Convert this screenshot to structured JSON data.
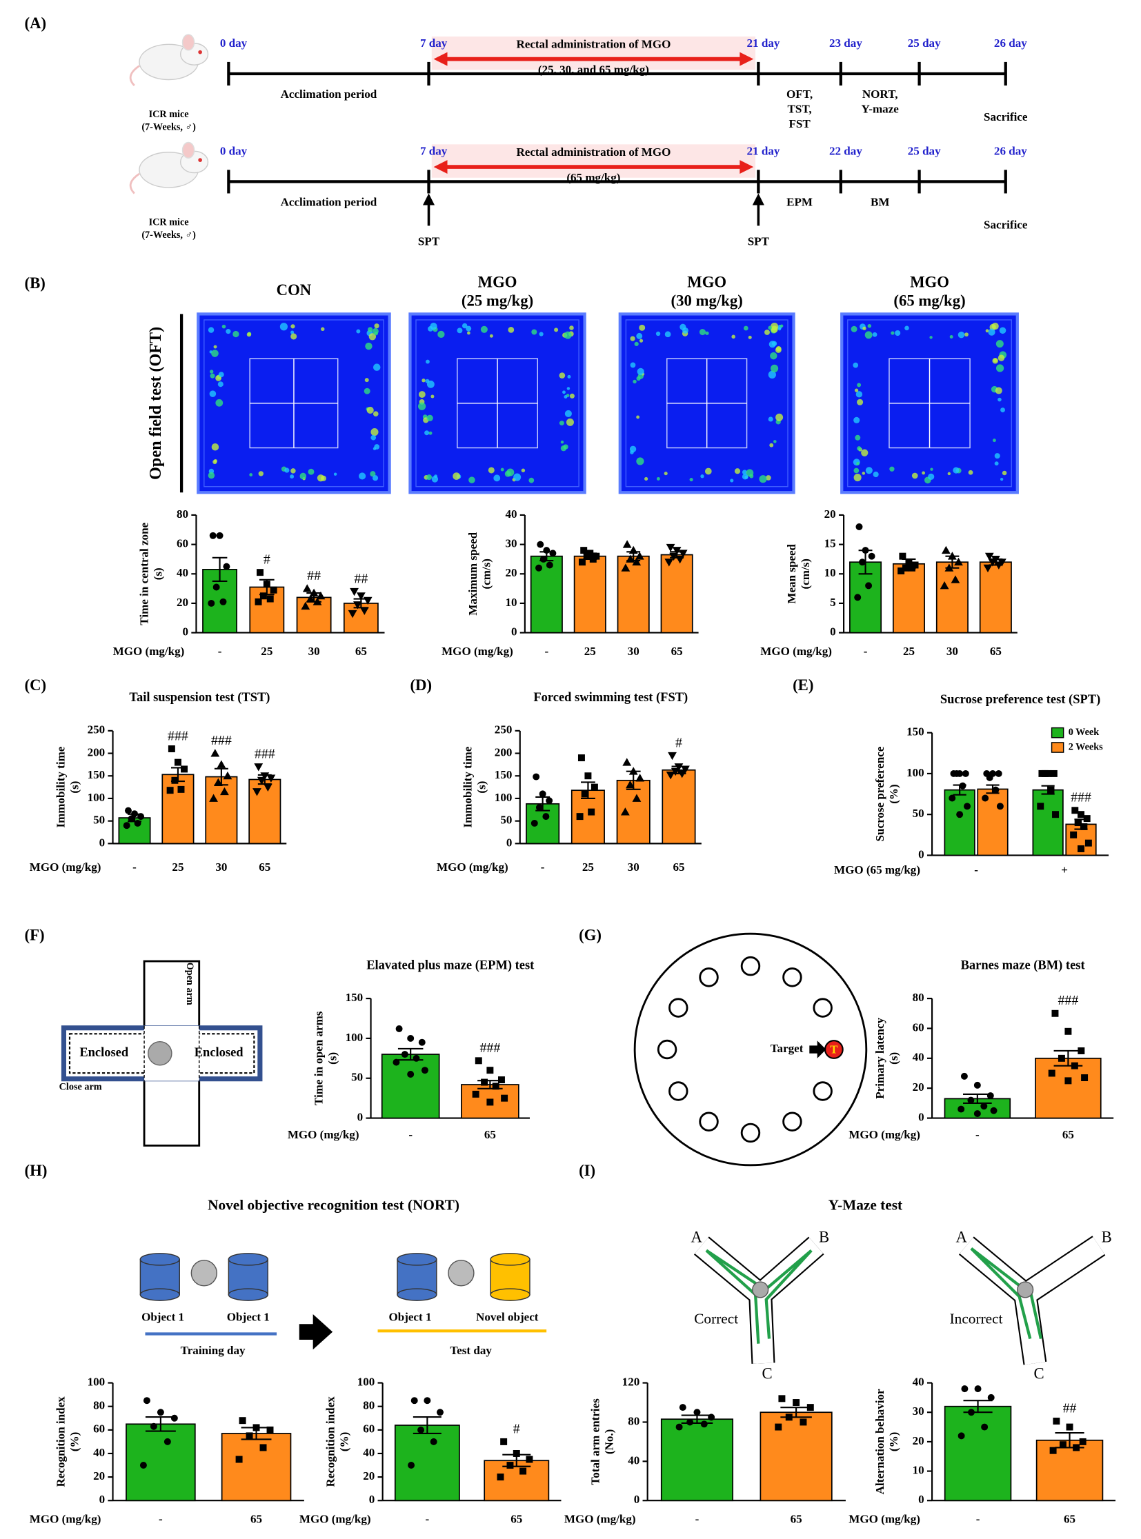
{
  "panel_labels": [
    "(A)",
    "(B)",
    "(C)",
    "(D)",
    "(E)",
    "(F)",
    "(G)",
    "(H)",
    "(I)"
  ],
  "timelines": [
    {
      "mice": [
        "ICR mice",
        "(7-Weeks, ♂)"
      ],
      "days": [
        "0 day",
        "7 day",
        "21 day",
        "23 day",
        "25 day",
        "26 day"
      ],
      "administration": "Rectal administration of MGO",
      "dose": "(25, 30, and 65 mg/kg)",
      "period": "Acclimation period",
      "tests_a": [
        "OFT,",
        "TST,",
        "FST"
      ],
      "tests_b": [
        "NORT,",
        "Y-maze"
      ],
      "end": "Sacrifice"
    },
    {
      "mice": [
        "ICR mice",
        "(7-Weeks, ♂)"
      ],
      "days": [
        "0 day",
        "7 day",
        "21 day",
        "22 day",
        "25 day",
        "26 day"
      ],
      "administration": "Rectal administration of MGO",
      "dose": "(65 mg/kg)",
      "period": "Acclimation period",
      "tests_a": [
        "EPM"
      ],
      "tests_b": [
        "BM"
      ],
      "end": "Sacrifice",
      "spt": [
        "SPT",
        "SPT"
      ]
    }
  ],
  "oft": {
    "label": "Open field test (OFT)",
    "titles": [
      [
        "CON"
      ],
      [
        "MGO",
        "(25 mg/kg)"
      ],
      [
        "MGO",
        "(30 mg/kg)"
      ],
      [
        "MGO",
        "(65 mg/kg)"
      ]
    ]
  },
  "epm": {
    "open": "Open arm",
    "enclosed": [
      "Enclosed",
      "Enclosed"
    ],
    "close": "Close arm"
  },
  "bm": {
    "target": "Target",
    "hole": "T"
  },
  "nort": {
    "title": "Novel objective recognition test (NORT)",
    "training": {
      "objects": [
        "Object 1",
        "Object 1"
      ],
      "day": "Training day"
    },
    "test": {
      "objects": [
        "Object 1",
        "Novel object"
      ],
      "day": "Test day"
    }
  },
  "ymaze": {
    "title": "Y-Maze test",
    "mazes": [
      {
        "arms": [
          "A",
          "B",
          "C"
        ],
        "result": "Correct"
      },
      {
        "arms": [
          "A",
          "B",
          "C"
        ],
        "result": "Incorrect"
      }
    ]
  },
  "chart_data": [
    {
      "type": "bar",
      "ylabel": [
        "Time in central zone",
        "(s)"
      ],
      "xlabel": "MGO (mg/kg)",
      "categories": [
        "-",
        "25",
        "30",
        "65"
      ],
      "ylim": [
        0,
        80
      ],
      "yticks": [
        0,
        20,
        40,
        60,
        80
      ],
      "series": [
        {
          "colors": [
            "#1db31d",
            "#ff8a1c",
            "#ff8a1c",
            "#ff8a1c"
          ],
          "markers": [
            "circle",
            "square",
            "triangle",
            "triangle-down"
          ],
          "values": [
            43,
            31,
            24,
            20
          ],
          "errors": [
            8,
            5,
            3,
            3
          ],
          "annotations": [
            null,
            "#",
            "##",
            "##"
          ],
          "points": [
            [
              66,
              66,
              45,
              31,
              21,
              20
            ],
            [
              41,
              33,
              29,
              25,
              23,
              21
            ],
            [
              30,
              27,
              25,
              23,
              21,
              18
            ],
            [
              28,
              25,
              22,
              19,
              15,
              13
            ]
          ]
        }
      ]
    },
    {
      "type": "bar",
      "ylabel": [
        "Maximum speed",
        "(cm/s)"
      ],
      "xlabel": "MGO (mg/kg)",
      "categories": [
        "-",
        "25",
        "30",
        "65"
      ],
      "ylim": [
        0,
        40
      ],
      "yticks": [
        0,
        10,
        20,
        30,
        40
      ],
      "series": [
        {
          "colors": [
            "#1db31d",
            "#ff8a1c",
            "#ff8a1c",
            "#ff8a1c"
          ],
          "markers": [
            "circle",
            "square",
            "triangle",
            "triangle-down"
          ],
          "values": [
            26,
            26,
            26,
            26.5
          ],
          "errors": [
            1.5,
            1,
            1.5,
            1
          ],
          "points": [
            [
              30,
              28,
              27,
              25,
              23,
              22
            ],
            [
              28,
              27,
              26,
              26,
              25,
              24
            ],
            [
              30,
              28,
              26,
              25,
              24,
              22
            ],
            [
              29,
              28,
              27,
              26,
              25,
              24
            ]
          ]
        }
      ]
    },
    {
      "type": "bar",
      "ylabel": [
        "Mean speed",
        "(cm/s)"
      ],
      "xlabel": "MGO (mg/kg)",
      "categories": [
        "-",
        "25",
        "30",
        "65"
      ],
      "ylim": [
        0,
        20
      ],
      "yticks": [
        0,
        5,
        10,
        15,
        20
      ],
      "series": [
        {
          "colors": [
            "#1db31d",
            "#ff8a1c",
            "#ff8a1c",
            "#ff8a1c"
          ],
          "markers": [
            "circle",
            "square",
            "triangle",
            "triangle-down"
          ],
          "values": [
            12,
            11.7,
            12,
            12
          ],
          "errors": [
            2,
            0.8,
            1,
            0.5
          ],
          "points": [
            [
              18,
              14,
              13,
              12,
              8,
              6
            ],
            [
              13,
              12,
              11.5,
              11,
              11,
              10.5
            ],
            [
              14,
              13,
              12,
              11,
              9,
              8
            ],
            [
              13,
              12.5,
              12,
              12,
              11.5,
              11
            ]
          ]
        }
      ]
    },
    {
      "type": "bar",
      "title": "Tail suspension test (TST)",
      "ylabel": [
        "Immobility time",
        "(s)"
      ],
      "xlabel": "MGO (mg/kg)",
      "categories": [
        "-",
        "25",
        "30",
        "65"
      ],
      "ylim": [
        0,
        250
      ],
      "yticks": [
        0,
        50,
        100,
        150,
        200,
        250
      ],
      "series": [
        {
          "colors": [
            "#1db31d",
            "#ff8a1c",
            "#ff8a1c",
            "#ff8a1c"
          ],
          "markers": [
            "circle",
            "square",
            "triangle",
            "triangle-down"
          ],
          "values": [
            57,
            153,
            148,
            142
          ],
          "errors": [
            8,
            15,
            18,
            10
          ],
          "annotations": [
            null,
            "###",
            "###",
            "###"
          ],
          "points": [
            [
              73,
              66,
              60,
              55,
              45,
              40
            ],
            [
              210,
              180,
              165,
              140,
              120,
              118
            ],
            [
              200,
              175,
              150,
              135,
              115,
              100
            ],
            [
              170,
              150,
              145,
              140,
              125,
              115
            ]
          ]
        }
      ]
    },
    {
      "type": "bar",
      "title": "Forced swimming test (FST)",
      "ylabel": [
        "Immobility time",
        "(s)"
      ],
      "xlabel": "MGO (mg/kg)",
      "categories": [
        "-",
        "25",
        "30",
        "65"
      ],
      "ylim": [
        0,
        250
      ],
      "yticks": [
        0,
        50,
        100,
        150,
        200,
        250
      ],
      "series": [
        {
          "colors": [
            "#1db31d",
            "#ff8a1c",
            "#ff8a1c",
            "#ff8a1c"
          ],
          "markers": [
            "circle",
            "square",
            "triangle",
            "triangle-down"
          ],
          "values": [
            88,
            118,
            140,
            163
          ],
          "errors": [
            15,
            18,
            20,
            8
          ],
          "annotations": [
            null,
            null,
            null,
            "#"
          ],
          "points": [
            [
              148,
              110,
              95,
              80,
              60,
              45
            ],
            [
              190,
              150,
              125,
              110,
              70,
              60
            ],
            [
              180,
              160,
              145,
              130,
              100,
              70
            ],
            [
              195,
              170,
              165,
              160,
              155,
              152
            ]
          ]
        }
      ]
    },
    {
      "type": "bar",
      "title": "Sucrose preference test (SPT)",
      "ylabel": [
        "Sucrose preference",
        "(%)"
      ],
      "xlabel": "MGO (65 mg/kg)",
      "categories": [
        "-",
        "+"
      ],
      "ylim": [
        0,
        150
      ],
      "yticks": [
        0,
        50,
        100,
        150
      ],
      "legend": "top-right",
      "series": [
        {
          "name": "0 Week",
          "color": "#1db31d",
          "markers": [
            "circle",
            "square"
          ],
          "values": [
            80,
            80
          ],
          "errors": [
            6,
            5
          ],
          "points": [
            [
              100,
              100,
              100,
              100,
              85,
              70,
              60,
              50
            ],
            [
              100,
              100,
              100,
              100,
              80,
              60,
              50
            ]
          ]
        },
        {
          "name": "2 Weeks",
          "color": "#ff8a1c",
          "markers": [
            "circle",
            "square"
          ],
          "values": [
            81,
            38
          ],
          "errors": [
            5,
            6
          ],
          "annotations": [
            null,
            "###"
          ],
          "points": [
            [
              100,
              100,
              100,
              95,
              80,
              70,
              60
            ],
            [
              55,
              50,
              45,
              40,
              35,
              25,
              15,
              8
            ]
          ]
        }
      ]
    },
    {
      "type": "bar",
      "title": "Elavated plus maze (EPM) test",
      "ylabel": [
        "Time in open arms",
        "(s)"
      ],
      "xlabel": "MGO (mg/kg)",
      "categories": [
        "-",
        "65"
      ],
      "ylim": [
        0,
        150
      ],
      "yticks": [
        0,
        50,
        100,
        150
      ],
      "series": [
        {
          "colors": [
            "#1db31d",
            "#ff8a1c"
          ],
          "markers": [
            "circle",
            "square"
          ],
          "values": [
            80,
            42
          ],
          "errors": [
            7,
            5
          ],
          "annotations": [
            null,
            "###"
          ],
          "points": [
            [
              112,
              100,
              95,
              80,
              75,
              70,
              60,
              55
            ],
            [
              72,
              60,
              48,
              45,
              40,
              30,
              25,
              20
            ]
          ]
        }
      ]
    },
    {
      "type": "bar",
      "title": "Barnes maze (BM) test",
      "ylabel": [
        "Primary latency",
        "(s)"
      ],
      "xlabel": "MGO (mg/kg)",
      "categories": [
        "-",
        "65"
      ],
      "ylim": [
        0,
        80
      ],
      "yticks": [
        0,
        20,
        40,
        60,
        80
      ],
      "series": [
        {
          "colors": [
            "#1db31d",
            "#ff8a1c"
          ],
          "markers": [
            "circle",
            "square"
          ],
          "values": [
            13,
            40
          ],
          "errors": [
            3,
            5
          ],
          "annotations": [
            null,
            "###"
          ],
          "points": [
            [
              28,
              22,
              15,
              12,
              8,
              6,
              5,
              3
            ],
            [
              70,
              58,
              45,
              40,
              35,
              30,
              27,
              25
            ]
          ]
        }
      ]
    },
    {
      "type": "bar",
      "ylabel": [
        "Recognition index",
        "(%)"
      ],
      "xlabel": "MGO (mg/kg)",
      "categories": [
        "-",
        "65"
      ],
      "ylim": [
        0,
        100
      ],
      "yticks": [
        0,
        20,
        40,
        60,
        80,
        100
      ],
      "series": [
        {
          "colors": [
            "#1db31d",
            "#ff8a1c"
          ],
          "markers": [
            "circle",
            "square"
          ],
          "values": [
            65,
            57
          ],
          "errors": [
            6,
            5
          ],
          "points": [
            [
              85,
              75,
              70,
              63,
              50,
              30
            ],
            [
              68,
              62,
              60,
              55,
              45,
              35
            ]
          ]
        }
      ]
    },
    {
      "type": "bar",
      "ylabel": [
        "Recognition index",
        "(%)"
      ],
      "xlabel": "MGO (mg/kg)",
      "categories": [
        "-",
        "65"
      ],
      "ylim": [
        0,
        100
      ],
      "yticks": [
        0,
        20,
        40,
        60,
        80,
        100
      ],
      "series": [
        {
          "colors": [
            "#1db31d",
            "#ff8a1c"
          ],
          "markers": [
            "circle",
            "square"
          ],
          "values": [
            64,
            34
          ],
          "errors": [
            7,
            5
          ],
          "annotations": [
            null,
            "#"
          ],
          "points": [
            [
              85,
              85,
              75,
              60,
              50,
              30
            ],
            [
              50,
              40,
              35,
              30,
              25,
              20
            ]
          ]
        }
      ]
    },
    {
      "type": "bar",
      "ylabel": [
        "Total arm entries",
        "(No.)"
      ],
      "xlabel": "MGO (mg/kg)",
      "categories": [
        "-",
        "65"
      ],
      "ylim": [
        0,
        120
      ],
      "yticks": [
        0,
        40,
        80,
        120
      ],
      "series": [
        {
          "colors": [
            "#1db31d",
            "#ff8a1c"
          ],
          "markers": [
            "circle",
            "square"
          ],
          "values": [
            83,
            90
          ],
          "errors": [
            4,
            5
          ],
          "points": [
            [
              95,
              90,
              85,
              80,
              78,
              75
            ],
            [
              104,
              100,
              95,
              85,
              80,
              75
            ]
          ]
        }
      ]
    },
    {
      "type": "bar",
      "ylabel": [
        "Alternation behavior",
        "(%)"
      ],
      "xlabel": "MGO (mg/kg)",
      "categories": [
        "-",
        "65"
      ],
      "ylim": [
        0,
        40
      ],
      "yticks": [
        0,
        10,
        20,
        30,
        40
      ],
      "series": [
        {
          "colors": [
            "#1db31d",
            "#ff8a1c"
          ],
          "markers": [
            "circle",
            "square"
          ],
          "values": [
            32,
            20.5
          ],
          "errors": [
            2,
            2.5
          ],
          "annotations": [
            null,
            "##"
          ],
          "points": [
            [
              38,
              38,
              35,
              30,
              25,
              22
            ],
            [
              27,
              25,
              20,
              19,
              18,
              17
            ]
          ]
        }
      ]
    }
  ]
}
